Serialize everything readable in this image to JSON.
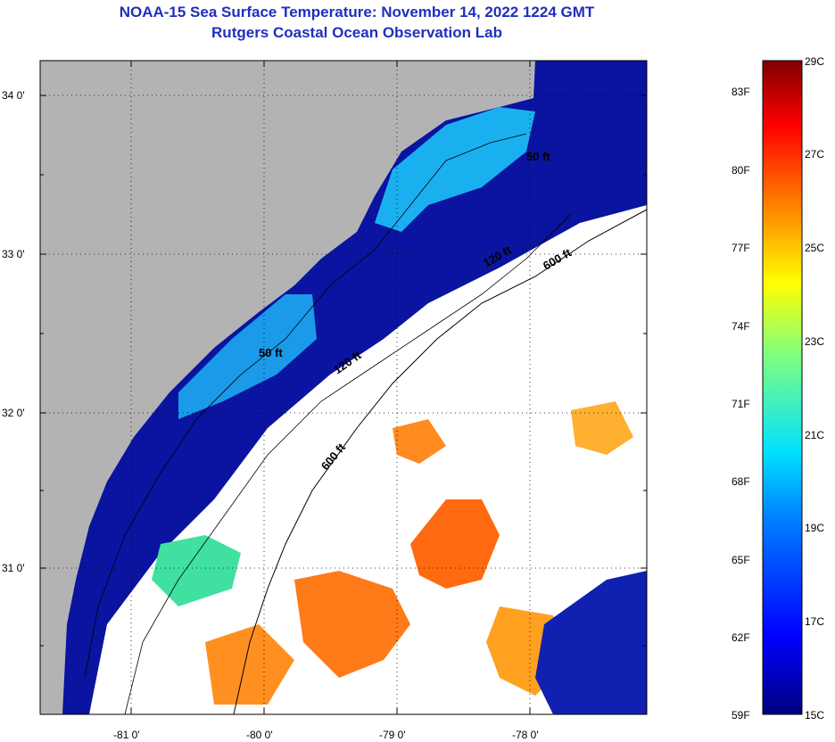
{
  "title": "NOAA-15 Sea Surface Temperature:  November 14, 2022 1224 GMT",
  "subtitle": "Rutgers Coastal Ocean Observation Lab",
  "lat_labels": [
    "34 0'",
    "33 0'",
    "32 0'",
    "31 0'"
  ],
  "lon_labels": [
    "-81 0'",
    "-80 0'",
    "-79 0'",
    "-78 0'"
  ],
  "contour_labels": [
    "50 ft",
    "50 ft",
    "120 ft",
    "600 ft",
    "120 ft",
    "600 ft"
  ],
  "colorbar": {
    "fahrenheit": [
      "83F",
      "80F",
      "77F",
      "74F",
      "71F",
      "68F",
      "65F",
      "62F",
      "59F"
    ],
    "celsius": [
      "29C",
      "27C",
      "25C",
      "23C",
      "21C",
      "19C",
      "17C",
      "15C"
    ],
    "min_c": 15,
    "max_c": 29
  },
  "colors": {
    "land": "#b3b3b3",
    "cloud": "#ffffff",
    "title": "#1f2fbf"
  }
}
